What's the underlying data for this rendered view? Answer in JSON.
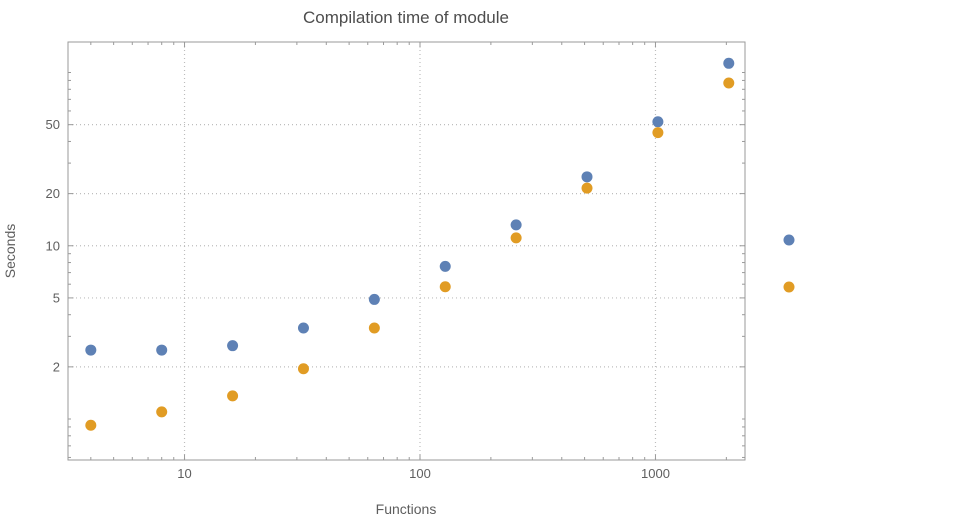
{
  "chart_data": {
    "type": "scatter",
    "title": "Compilation time of module",
    "xlabel": "Functions",
    "ylabel": "Seconds",
    "x_scale": "log",
    "y_scale": "log",
    "xlim": [
      3.2,
      2400
    ],
    "ylim": [
      0.58,
      150
    ],
    "x_ticks": [
      10,
      100,
      1000
    ],
    "y_ticks": [
      2,
      5,
      10,
      20,
      50
    ],
    "grid": "dotted",
    "x": [
      4,
      8,
      16,
      32,
      64,
      128,
      256,
      512,
      1024,
      2048
    ],
    "series": [
      {
        "name": "series-1-blue",
        "color": "#5E81B5",
        "values": [
          2.5,
          2.5,
          2.65,
          3.35,
          4.9,
          7.6,
          13.2,
          25,
          52,
          113
        ]
      },
      {
        "name": "series-2-orange",
        "color": "#E19C24",
        "values": [
          0.92,
          1.1,
          1.36,
          1.95,
          3.35,
          5.8,
          11.1,
          21.5,
          45,
          87
        ]
      }
    ],
    "legend": {
      "position": "right-outside",
      "markers": [
        {
          "name": "legend-marker-blue",
          "color": "#5E81B5"
        },
        {
          "name": "legend-marker-orange",
          "color": "#E19C24"
        }
      ]
    },
    "style": {
      "frame_color": "#9a9a9a",
      "grid_color": "#bdbdbd",
      "point_radius": 5.5
    }
  }
}
